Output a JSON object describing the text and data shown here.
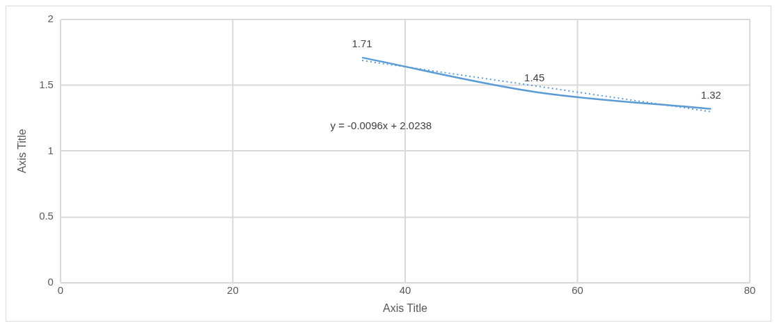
{
  "chart_data": {
    "type": "line",
    "xlabel": "Axis Title",
    "ylabel": "Axis Title",
    "xlim": [
      0,
      80
    ],
    "xticks": [
      0,
      20,
      40,
      60,
      80
    ],
    "ylim": [
      0,
      2
    ],
    "yticks": [
      0,
      0.5,
      1,
      1.5,
      2
    ],
    "grid": true,
    "legend": false,
    "marker": "none",
    "series": [
      {
        "color": "#5b9bd5",
        "x": [
          35,
          55,
          75.5
        ],
        "values": [
          1.71,
          1.45,
          1.32
        ],
        "value_labels": [
          "1.71",
          "1.45",
          "1.32"
        ]
      },
      {
        "type": "line",
        "color": "#5b9bd5",
        "line_style": "dotted",
        "x": [
          35,
          75.5
        ],
        "values": [
          1.688,
          1.299
        ]
      }
    ],
    "annotations": [
      "y = -0.0096x + 2.0238"
    ]
  }
}
